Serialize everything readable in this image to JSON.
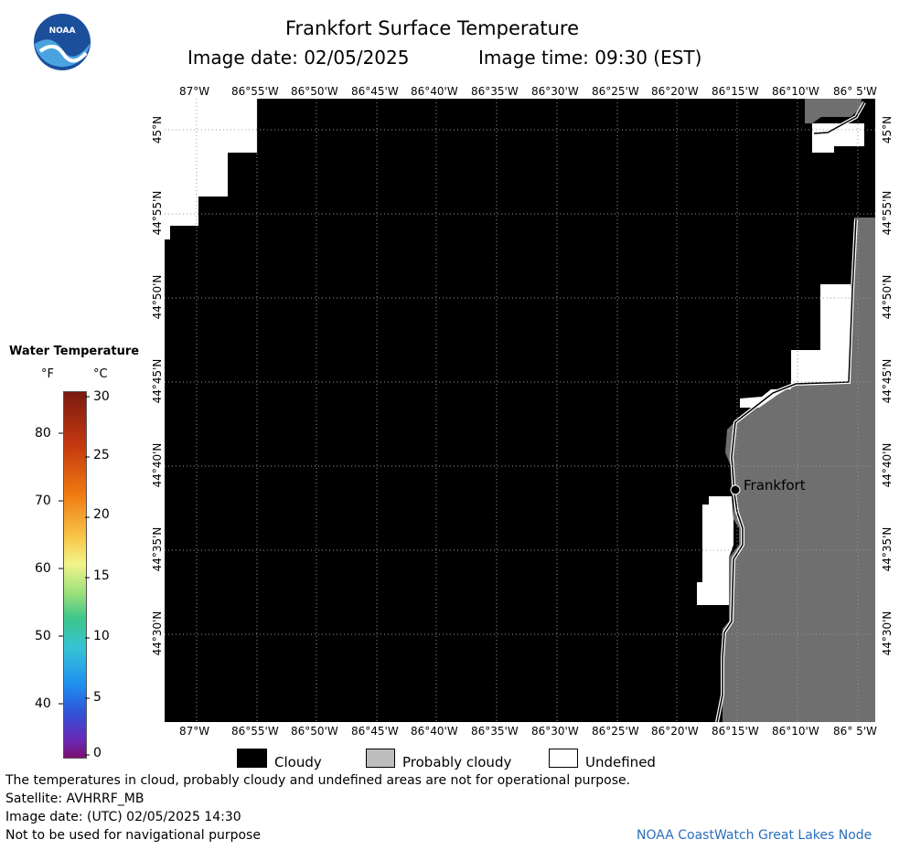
{
  "header": {
    "title": "Frankfort Surface Temperature",
    "image_date": "Image date: 02/05/2025",
    "image_time": "Image time: 09:30 (EST)"
  },
  "logo": {
    "text": "NOAA",
    "color": "#1b4f9c"
  },
  "map": {
    "lon_labels": [
      "87°W",
      "86°55'W",
      "86°50'W",
      "86°45'W",
      "86°40'W",
      "86°35'W",
      "86°30'W",
      "86°25'W",
      "86°20'W",
      "86°15'W",
      "86°10'W",
      "86° 5'W"
    ],
    "lat_labels": [
      "45°N",
      "44°55'N",
      "44°50'N",
      "44°45'N",
      "44°40'N",
      "44°35'N",
      "44°30'N"
    ],
    "place_label": "Frankfort",
    "colors": {
      "cloudy": "#000000",
      "probably_cloudy": "#6f6f6f",
      "undefined": "#ffffff"
    }
  },
  "scale": {
    "title": "Water Temperature",
    "unit_f": "°F",
    "unit_c": "°C",
    "f_ticks": [
      "80",
      "70",
      "60",
      "50",
      "40"
    ],
    "c_ticks": [
      "30",
      "25",
      "20",
      "15",
      "10",
      "5",
      "0"
    ]
  },
  "legend": {
    "cloudy": "Cloudy",
    "probably_cloudy": "Probably cloudy",
    "undefined": "Undefined"
  },
  "footer": {
    "line1": "The temperatures in cloud, probably cloudy and undefined areas are not for operational purpose.",
    "line2": "Satellite: AVHRRF_MB",
    "line3": "Image date: (UTC) 02/05/2025  14:30",
    "line4": "Not to be used for navigational purpose",
    "credit": "NOAA CoastWatch Great Lakes Node",
    "credit_color": "#2a6ebb"
  }
}
